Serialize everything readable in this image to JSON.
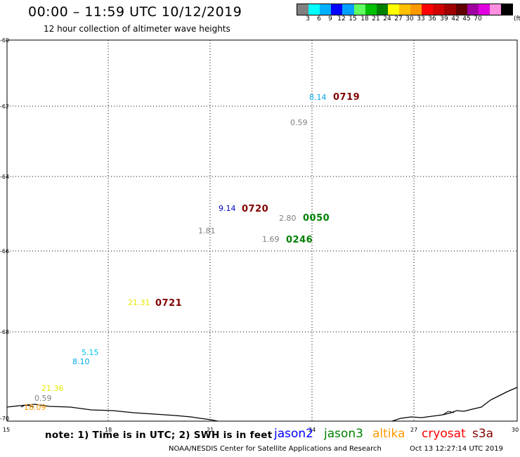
{
  "header": {
    "title": "00:00 – 11:59 UTC 10/12/2019",
    "subtitle": "12 hour collection of altimeter wave heights"
  },
  "legend": {
    "colors": [
      "#808080",
      "#00ffff",
      "#00b0ff",
      "#0000ff",
      "#00a0ff",
      "#60ff60",
      "#00c000",
      "#008000",
      "#ffff00",
      "#ffc000",
      "#ff9900",
      "#ff0000",
      "#d00000",
      "#a00000",
      "#600000",
      "#a000a0",
      "#e000e0",
      "#ff90e0",
      "#000000"
    ],
    "ticks": [
      "3",
      "6",
      "9",
      "12",
      "15",
      "18",
      "21",
      "24",
      "27",
      "30",
      "33",
      "36",
      "39",
      "42",
      "45",
      "70"
    ],
    "unit": "(ft)"
  },
  "map": {
    "lat_ticks": [
      "-60",
      "-62",
      "-64",
      "-66",
      "-68",
      "-70"
    ],
    "lon_ticks": [
      "15",
      "18",
      "21",
      "24",
      "27",
      "30"
    ],
    "time_labels": [
      {
        "text": "0719",
        "color": "#800000"
      },
      {
        "text": "0720",
        "color": "#800000"
      },
      {
        "text": "0050",
        "color": "#008000"
      },
      {
        "text": "0246",
        "color": "#008000"
      },
      {
        "text": "0721",
        "color": "#800000"
      }
    ],
    "swh_labels": [
      {
        "text": "8.14",
        "color": "#00a8e8"
      },
      {
        "text": "0.59",
        "color": "#808080"
      },
      {
        "text": "9.14",
        "color": "#0000c0"
      },
      {
        "text": "2.80",
        "color": "#808080"
      },
      {
        "text": "1.81",
        "color": "#808080"
      },
      {
        "text": "1.69",
        "color": "#808080"
      },
      {
        "text": "21.31",
        "color": "#e8e800"
      },
      {
        "text": "5.15",
        "color": "#00c8e8"
      },
      {
        "text": "8.10",
        "color": "#00a8e8"
      },
      {
        "text": "21.36",
        "color": "#e8e800"
      },
      {
        "text": "0.59",
        "color": "#808080"
      },
      {
        "text": "18.09",
        "color": "#ff9900"
      }
    ]
  },
  "footer": {
    "note": "note: 1) Time is in UTC; 2) SWH is in feet",
    "satellites": [
      {
        "name": "jason2",
        "color": "#0000ff"
      },
      {
        "name": "jason3",
        "color": "#008000"
      },
      {
        "name": "altika",
        "color": "#ff9900"
      },
      {
        "name": "cryosat",
        "color": "#ff0000"
      },
      {
        "name": "s3a",
        "color": "#800000"
      }
    ],
    "credit": "NOAA/NESDIS Center for Satellite Applications and Research",
    "timestamp": "Oct 13 12:27:14 UTC 2019"
  }
}
